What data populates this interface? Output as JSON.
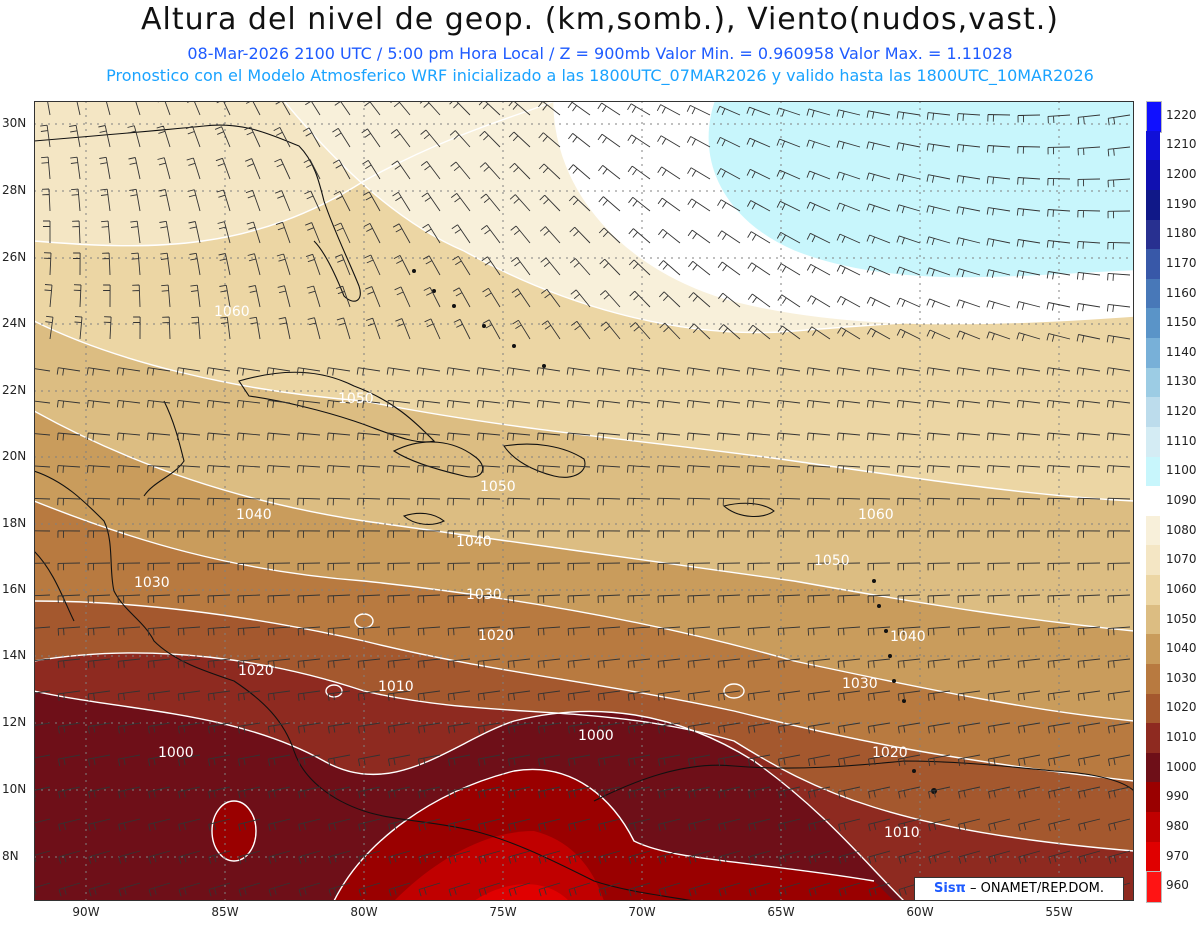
{
  "header": {
    "title": "Altura del nivel de geop. (km,somb.), Viento(nudos,vast.)",
    "subtitle_1": "08-Mar-2026  2100 UTC / 5:00 pm Hora Local / Z = 900mb    Valor Min. = 0.960958  Valor Max. = 1.11028",
    "subtitle_2": "Pronostico con el Modelo Atmosferico WRF inicializado a las 1800UTC_07MAR2026 y valido hasta las  1800UTC_10MAR2026"
  },
  "map": {
    "lat_labels": [
      "30N",
      "28N",
      "26N",
      "24N",
      "22N",
      "20N",
      "18N",
      "16N",
      "14N",
      "12N",
      "10N",
      "8N"
    ],
    "lon_labels": [
      "90W",
      "85W",
      "80W",
      "75W",
      "70W",
      "65W",
      "60W",
      "55W"
    ],
    "contour_labels": [
      "1060",
      "1050",
      "1050",
      "1040",
      "1040",
      "1030",
      "1030",
      "1020",
      "1020",
      "1010",
      "1000",
      "1000",
      "1050",
      "1060",
      "1040",
      "1030",
      "1020",
      "1010"
    ],
    "colors": {
      "z960": "#ff1414",
      "z970": "#e00000",
      "z980": "#c00000",
      "z990": "#9a0000",
      "z1000": "#6e0f18",
      "z1010": "#8e2a20",
      "z1020": "#a4582e",
      "z1030": "#b87a40",
      "z1040": "#c99c5c",
      "z1050": "#dcbd82",
      "z1060": "#ecd6a4",
      "z1070": "#f4e6c4",
      "z1080": "#f8f0da",
      "z1090": "#ffffff",
      "z1100": "#c8f6fc"
    }
  },
  "colorbar": {
    "labels": [
      "1220",
      "1210",
      "1200",
      "1190",
      "1180",
      "1170",
      "1160",
      "1150",
      "1140",
      "1130",
      "1120",
      "1110",
      "1100",
      "1090",
      "1080",
      "1070",
      "1060",
      "1050",
      "1040",
      "1030",
      "1020",
      "1010",
      "1000",
      "990",
      "980",
      "970",
      "960"
    ],
    "colors": [
      "#1010ff",
      "#1010d8",
      "#1010b0",
      "#101888",
      "#283090",
      "#3858a8",
      "#4878b8",
      "#5a94c8",
      "#78b0d8",
      "#9ccce4",
      "#bcdcec",
      "#d4ecf4",
      "#c8f6fc",
      "#ffffff",
      "#f8f0da",
      "#f4e6c4",
      "#ecd6a4",
      "#dcbd82",
      "#c99c5c",
      "#b87a40",
      "#a4582e",
      "#8e2a20",
      "#6e0f18",
      "#9a0000",
      "#c00000",
      "#e00000",
      "#ff1414"
    ]
  },
  "credit": {
    "logo": "Sisπ",
    "text": " – ONAMET/REP.DOM."
  }
}
